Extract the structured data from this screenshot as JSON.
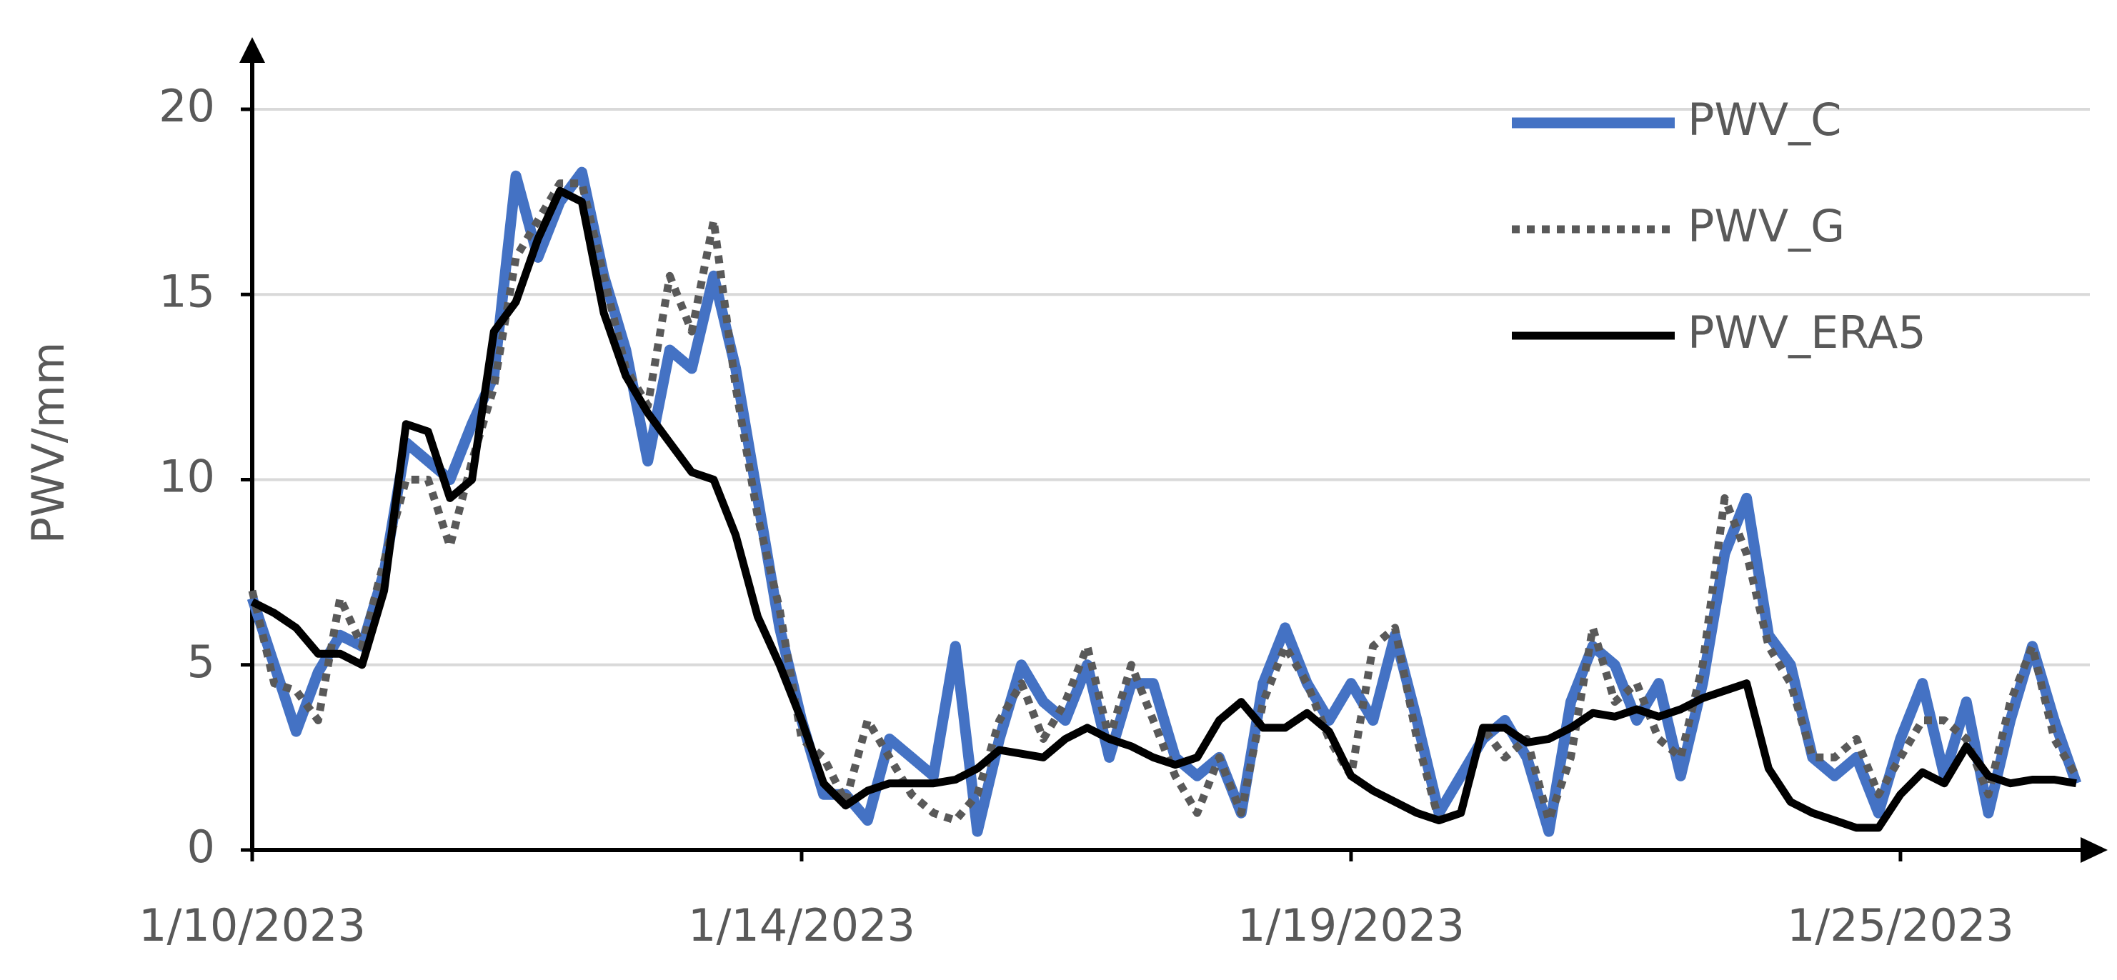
{
  "chart_data": {
    "type": "line",
    "y_label": "PWV/mm",
    "categories": [
      "1/10/2023",
      null,
      null,
      null,
      null,
      null,
      null,
      null,
      null,
      null,
      null,
      null,
      null,
      null,
      null,
      null,
      null,
      null,
      null,
      null,
      null,
      null,
      null,
      null,
      null,
      "1/14/2023",
      null,
      null,
      null,
      null,
      null,
      null,
      null,
      null,
      null,
      null,
      null,
      null,
      null,
      null,
      null,
      null,
      null,
      null,
      null,
      null,
      null,
      null,
      null,
      null,
      "1/19/2023",
      null,
      null,
      null,
      null,
      null,
      null,
      null,
      null,
      null,
      null,
      null,
      null,
      null,
      null,
      null,
      null,
      null,
      null,
      null,
      null,
      null,
      null,
      null,
      null,
      "1/25/2023",
      null,
      null,
      null,
      null,
      null,
      null,
      null,
      null
    ],
    "series": [
      {
        "name": "PWV_C",
        "color": "#4472c4",
        "style": "solid",
        "values": [
          6.8,
          5.0,
          3.2,
          4.8,
          5.8,
          5.5,
          7.5,
          11,
          10.5,
          10.0,
          11.5,
          12.8,
          18.2,
          16,
          17.5,
          18.3,
          15.5,
          13.5,
          10.5,
          13.5,
          13.0,
          15.5,
          13.0,
          9.5,
          6.0,
          3.5,
          1.5,
          1.5,
          0.8,
          3.0,
          2.5,
          2.0,
          5.5,
          0.5,
          3.0,
          5.0,
          4.0,
          3.5,
          5.0,
          2.5,
          4.5,
          4.5,
          2.5,
          2.0,
          2.5,
          1.0,
          4.5,
          6.0,
          4.5,
          3.5,
          4.5,
          3.5,
          5.8,
          3.5,
          1.0,
          2.0,
          3.0,
          3.5,
          2.5,
          0.5,
          4.0,
          5.5,
          5.0,
          3.5,
          4.5,
          2.0,
          4.5,
          8.0,
          9.5,
          5.8,
          5.0,
          2.5,
          2.0,
          2.5,
          1.0,
          3.0,
          4.5,
          2.0,
          4.0,
          1.0,
          3.5,
          5.5,
          3.5,
          1.8
        ]
      },
      {
        "name": "PWV_G",
        "color": "#595959",
        "style": "dotted",
        "values": [
          7.0,
          4.5,
          4.3,
          3.5,
          6.8,
          5.5,
          7.8,
          10,
          10,
          8.2,
          10.5,
          12.5,
          16,
          17,
          18,
          18,
          15.5,
          13,
          12.0,
          15.5,
          14.0,
          17.0,
          12.5,
          9.0,
          6.5,
          3.0,
          2.5,
          1.3,
          3.5,
          2.5,
          1.5,
          1.0,
          0.8,
          1.5,
          3.5,
          4.5,
          3.0,
          4.0,
          5.5,
          3.0,
          5.0,
          3.5,
          2.0,
          1.0,
          2.5,
          1.0,
          4.0,
          5.5,
          4.5,
          3.0,
          2.0,
          5.5,
          6.0,
          3.0,
          0.8,
          1.0,
          3.3,
          2.5,
          3.0,
          0.8,
          2.5,
          6.0,
          4.0,
          4.5,
          3.0,
          2.5,
          5.0,
          9.5,
          8.0,
          5.5,
          4.5,
          2.5,
          2.5,
          3.0,
          1.5,
          2.5,
          3.5,
          3.5,
          3.0,
          1.5,
          4.0,
          5.5,
          3.0,
          2.0
        ]
      },
      {
        "name": "PWV_ERA5",
        "color": "#000000",
        "style": "solid",
        "values": [
          6.7,
          6.4,
          6.0,
          5.3,
          5.3,
          5.0,
          7.0,
          11.5,
          11.3,
          9.5,
          10.0,
          14.0,
          14.8,
          16.5,
          17.8,
          17.5,
          14.5,
          12.8,
          11.8,
          11.0,
          10.2,
          10.0,
          8.5,
          6.3,
          5.0,
          3.5,
          1.8,
          1.2,
          1.6,
          1.8,
          1.8,
          1.8,
          1.9,
          2.2,
          2.7,
          2.6,
          2.5,
          3.0,
          3.3,
          3.0,
          2.8,
          2.5,
          2.3,
          2.5,
          3.5,
          4.0,
          3.3,
          3.3,
          3.7,
          3.2,
          2.0,
          1.6,
          1.3,
          1.0,
          0.8,
          1.0,
          3.3,
          3.3,
          2.9,
          3.0,
          3.3,
          3.7,
          3.6,
          3.8,
          3.6,
          3.8,
          4.1,
          4.3,
          4.5,
          2.2,
          1.3,
          1.0,
          0.8,
          0.6,
          0.6,
          1.5,
          2.1,
          1.8,
          2.8,
          2.0,
          1.8,
          1.9,
          1.9,
          1.8
        ]
      }
    ],
    "ylim": [
      0,
      20
    ],
    "yticks": [
      0,
      5,
      10,
      15,
      20
    ],
    "grid": true,
    "legend": "upper right"
  }
}
